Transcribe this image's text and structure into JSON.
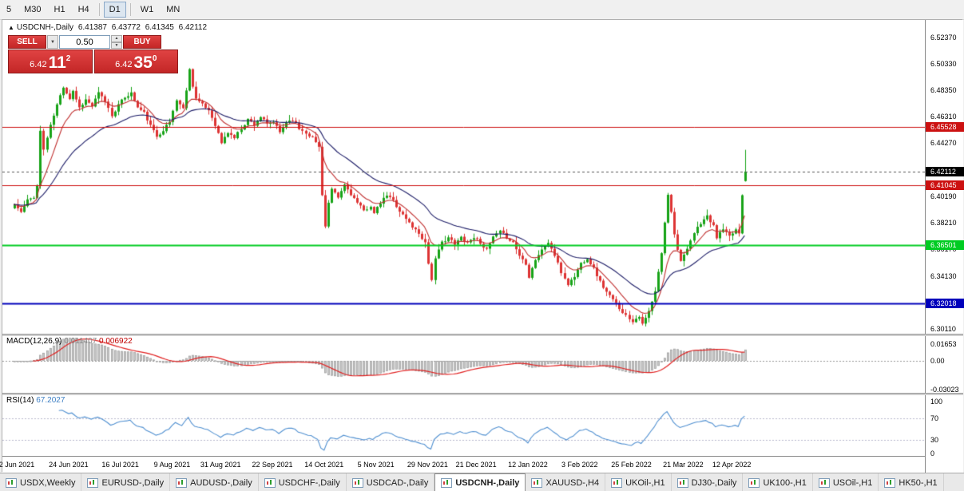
{
  "toolbar": {
    "timeframes": [
      {
        "label": "5"
      },
      {
        "label": "M30"
      },
      {
        "label": "H1"
      },
      {
        "label": "H4"
      },
      {
        "label": "D1",
        "active": true
      },
      {
        "label": "W1"
      },
      {
        "label": "MN"
      }
    ]
  },
  "icons": {
    "symbol_marker": "▲",
    "dropdown": "▼",
    "spin_up": "▲",
    "spin_down": "▼"
  },
  "chart": {
    "symbol_line": {
      "symbol": "USDCNH-,Daily",
      "open": "6.41387",
      "high": "6.43772",
      "low": "6.41345",
      "close": "6.42112"
    },
    "price_axis": {
      "ticks": [
        {
          "label": "6.52370",
          "value": 6.5237
        },
        {
          "label": "6.50330",
          "value": 6.5033
        },
        {
          "label": "6.48350",
          "value": 6.4835
        },
        {
          "label": "6.46310",
          "value": 6.4631
        },
        {
          "label": "6.44270",
          "value": 6.4427
        },
        {
          "label": "6.40190",
          "value": 6.4019
        },
        {
          "label": "6.38210",
          "value": 6.3821
        },
        {
          "label": "6.36170",
          "value": 6.3617
        },
        {
          "label": "6.34130",
          "value": 6.3413
        },
        {
          "label": "6.32090",
          "value": 6.3209
        },
        {
          "label": "6.30110",
          "value": 6.3011
        }
      ]
    }
  },
  "trade": {
    "sell_label": "SELL",
    "buy_label": "BUY",
    "volume": "0.50",
    "bid": {
      "prefix": "6.42",
      "big": "11",
      "sup": "2"
    },
    "ask": {
      "prefix": "6.42",
      "big": "35",
      "sup": "0"
    }
  },
  "indicators": {
    "macd": {
      "name": "MACD(12,26,9)",
      "value_main": "0.011407",
      "value_signal": "0.006922",
      "params": {
        "fast": 12,
        "slow": 26,
        "signal": 9
      },
      "axis": [
        {
          "label": "0.01653",
          "value": 0.01653
        },
        {
          "label": "0.00",
          "value": 0
        },
        {
          "label": "-0.03023",
          "value": -0.03023
        }
      ]
    },
    "rsi": {
      "name": "RSI(14)",
      "value": "67.2027",
      "period": 14,
      "levels": [
        70,
        30
      ],
      "axis": [
        {
          "label": "100",
          "value": 100
        },
        {
          "label": "70",
          "value": 70
        },
        {
          "label": "30",
          "value": 30
        },
        {
          "label": "0",
          "value": 0
        }
      ]
    }
  },
  "chart_data": {
    "type": "candlestick",
    "symbol": "USDCNH",
    "timeframe": "Daily",
    "candle_count": 227,
    "seed": 11,
    "noise": 0.0012,
    "wick": 0.004,
    "y_range": [
      6.2975,
      6.5345
    ],
    "last_candle": {
      "open": 6.41387,
      "high": 6.43772,
      "low": 6.41345,
      "close": 6.42112
    },
    "current_price": {
      "label": "6.42112",
      "value": 6.42112,
      "bg": "#000000"
    },
    "levels": [
      {
        "label": "6.45528",
        "value": 6.45528,
        "color": "#cc1111",
        "width": 1
      },
      {
        "label": "6.41045",
        "value": 6.41045,
        "color": "#cc1111",
        "width": 1
      },
      {
        "label": "6.36501",
        "value": 6.36501,
        "color": "#00cc22",
        "width": 2
      },
      {
        "label": "6.32018",
        "value": 6.32018,
        "color": "#0000bb",
        "width": 2
      }
    ],
    "moving_averages": [
      {
        "period": 10,
        "color": "#c03030"
      },
      {
        "period": 30,
        "color": "#1b1b66"
      }
    ],
    "date_ticks": [
      {
        "i": 1,
        "label": "2 Jun 2021"
      },
      {
        "i": 17,
        "label": "24 Jun 2021"
      },
      {
        "i": 33,
        "label": "16 Jul 2021"
      },
      {
        "i": 49,
        "label": "9 Aug 2021"
      },
      {
        "i": 64,
        "label": "31 Aug 2021"
      },
      {
        "i": 80,
        "label": "22 Sep 2021"
      },
      {
        "i": 96,
        "label": "14 Oct 2021"
      },
      {
        "i": 112,
        "label": "5 Nov 2021"
      },
      {
        "i": 128,
        "label": "29 Nov 2021"
      },
      {
        "i": 143,
        "label": "21 Dec 2021"
      },
      {
        "i": 159,
        "label": "12 Jan 2022"
      },
      {
        "i": 175,
        "label": "3 Feb 2022"
      },
      {
        "i": 191,
        "label": "25 Feb 2022"
      },
      {
        "i": 207,
        "label": "21 Mar 2022"
      },
      {
        "i": 222,
        "label": "12 Apr 2022"
      }
    ],
    "price_path_anchors": [
      [
        0,
        6.396
      ],
      [
        2,
        6.39
      ],
      [
        4,
        6.399
      ],
      [
        6,
        6.402
      ],
      [
        7,
        6.41
      ],
      [
        8,
        6.452
      ],
      [
        9,
        6.438
      ],
      [
        11,
        6.456
      ],
      [
        13,
        6.472
      ],
      [
        15,
        6.486
      ],
      [
        17,
        6.477
      ],
      [
        18,
        6.483
      ],
      [
        20,
        6.47
      ],
      [
        22,
        6.476
      ],
      [
        24,
        6.471
      ],
      [
        26,
        6.481
      ],
      [
        28,
        6.475
      ],
      [
        30,
        6.464
      ],
      [
        32,
        6.472
      ],
      [
        34,
        6.478
      ],
      [
        36,
        6.481
      ],
      [
        38,
        6.47
      ],
      [
        40,
        6.466
      ],
      [
        42,
        6.456
      ],
      [
        44,
        6.448
      ],
      [
        46,
        6.453
      ],
      [
        48,
        6.459
      ],
      [
        50,
        6.476
      ],
      [
        52,
        6.469
      ],
      [
        54,
        6.499
      ],
      [
        55,
        6.487
      ],
      [
        56,
        6.477
      ],
      [
        58,
        6.472
      ],
      [
        60,
        6.468
      ],
      [
        62,
        6.457
      ],
      [
        64,
        6.443
      ],
      [
        66,
        6.451
      ],
      [
        68,
        6.447
      ],
      [
        70,
        6.454
      ],
      [
        72,
        6.461
      ],
      [
        74,
        6.457
      ],
      [
        76,
        6.463
      ],
      [
        78,
        6.457
      ],
      [
        80,
        6.459
      ],
      [
        82,
        6.451
      ],
      [
        84,
        6.459
      ],
      [
        86,
        6.461
      ],
      [
        88,
        6.454
      ],
      [
        90,
        6.451
      ],
      [
        92,
        6.447
      ],
      [
        94,
        6.44
      ],
      [
        95,
        6.404
      ],
      [
        96,
        6.379
      ],
      [
        97,
        6.397
      ],
      [
        98,
        6.407
      ],
      [
        100,
        6.401
      ],
      [
        102,
        6.411
      ],
      [
        104,
        6.404
      ],
      [
        106,
        6.397
      ],
      [
        108,
        6.391
      ],
      [
        110,
        6.395
      ],
      [
        111,
        6.389
      ],
      [
        113,
        6.397
      ],
      [
        115,
        6.403
      ],
      [
        117,
        6.399
      ],
      [
        119,
        6.391
      ],
      [
        121,
        6.385
      ],
      [
        123,
        6.379
      ],
      [
        125,
        6.374
      ],
      [
        127,
        6.367
      ],
      [
        128,
        6.351
      ],
      [
        129,
        6.339
      ],
      [
        130,
        6.354
      ],
      [
        132,
        6.367
      ],
      [
        134,
        6.371
      ],
      [
        136,
        6.365
      ],
      [
        138,
        6.371
      ],
      [
        140,
        6.367
      ],
      [
        142,
        6.371
      ],
      [
        144,
        6.367
      ],
      [
        146,
        6.361
      ],
      [
        148,
        6.371
      ],
      [
        150,
        6.375
      ],
      [
        152,
        6.371
      ],
      [
        154,
        6.367
      ],
      [
        156,
        6.357
      ],
      [
        158,
        6.351
      ],
      [
        159,
        6.341
      ],
      [
        161,
        6.354
      ],
      [
        163,
        6.361
      ],
      [
        165,
        6.367
      ],
      [
        167,
        6.357
      ],
      [
        169,
        6.344
      ],
      [
        171,
        6.335
      ],
      [
        173,
        6.341
      ],
      [
        175,
        6.351
      ],
      [
        177,
        6.355
      ],
      [
        179,
        6.347
      ],
      [
        181,
        6.337
      ],
      [
        183,
        6.329
      ],
      [
        185,
        6.323
      ],
      [
        187,
        6.317
      ],
      [
        189,
        6.311
      ],
      [
        191,
        6.307
      ],
      [
        193,
        6.311
      ],
      [
        194,
        6.304
      ],
      [
        196,
        6.314
      ],
      [
        198,
        6.329
      ],
      [
        200,
        6.359
      ],
      [
        202,
        6.404
      ],
      [
        203,
        6.391
      ],
      [
        204,
        6.374
      ],
      [
        205,
        6.361
      ],
      [
        206,
        6.354
      ],
      [
        208,
        6.361
      ],
      [
        210,
        6.374
      ],
      [
        212,
        6.382
      ],
      [
        214,
        6.387
      ],
      [
        216,
        6.379
      ],
      [
        217,
        6.371
      ],
      [
        219,
        6.377
      ],
      [
        221,
        6.371
      ],
      [
        223,
        6.377
      ],
      [
        224,
        6.374
      ],
      [
        225,
        6.404
      ],
      [
        226,
        6.42112
      ]
    ]
  },
  "tabs": [
    {
      "label": "USDX,Weekly"
    },
    {
      "label": "EURUSD-,Daily"
    },
    {
      "label": "AUDUSD-,Daily"
    },
    {
      "label": "USDCHF-,Daily"
    },
    {
      "label": "USDCAD-,Daily"
    },
    {
      "label": "USDCNH-,Daily",
      "active": true
    },
    {
      "label": "XAUUSD-,H4"
    },
    {
      "label": "UKOil-,H1"
    },
    {
      "label": "DJ30-,Daily"
    },
    {
      "label": "UK100-,H1"
    },
    {
      "label": "USOil-,H1"
    },
    {
      "label": "HK50-,H1"
    }
  ],
  "colors": {
    "bull": "#17a317",
    "bear": "#dd3333",
    "macd_hist": "#c9c9c9",
    "macd_signal": "#e02020",
    "rsi_line": "#4f8fd0",
    "panel_red": "#d32f2f"
  }
}
